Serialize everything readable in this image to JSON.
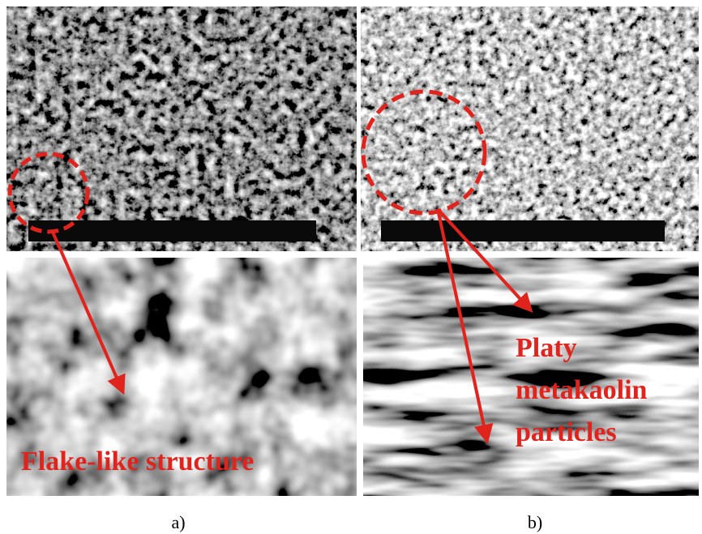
{
  "panels": [
    {
      "annotation": "Flake-like structure",
      "caption": "a)"
    },
    {
      "annotation_lines": [
        "Platy",
        "metakaolin",
        "particles"
      ],
      "caption": "b)"
    }
  ]
}
